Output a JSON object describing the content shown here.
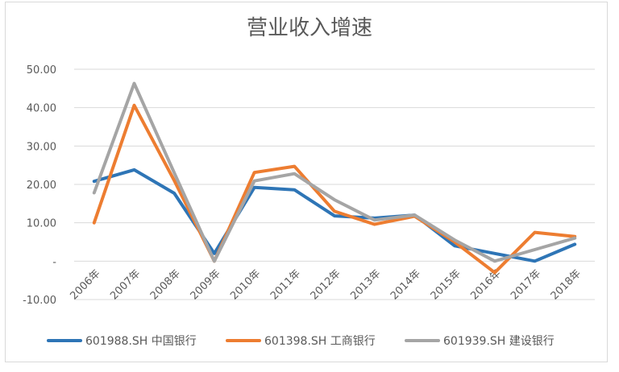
{
  "chart_data": {
    "type": "line",
    "title": "营业收入增速",
    "categories": [
      "2006年",
      "2007年",
      "2008年",
      "2009年",
      "2010年",
      "2011年",
      "2012年",
      "2013年",
      "2014年",
      "2015年",
      "2016年",
      "2017年",
      "2018年"
    ],
    "series": [
      {
        "name": "601988.SH 中国银行",
        "color": "#2e75b6",
        "values": [
          20.8,
          23.8,
          17.7,
          2.0,
          19.2,
          18.6,
          11.8,
          11.2,
          12.0,
          4.0,
          2.0,
          0.0,
          4.4
        ]
      },
      {
        "name": "601398.SH 工商银行",
        "color": "#ed7d31",
        "values": [
          10.0,
          40.6,
          21.0,
          0.0,
          23.1,
          24.7,
          13.0,
          9.6,
          11.7,
          5.0,
          -3.0,
          7.5,
          6.4
        ]
      },
      {
        "name": "601939.SH 建设银行",
        "color": "#a5a5a5",
        "values": [
          17.8,
          46.3,
          23.0,
          0.0,
          20.9,
          22.8,
          16.0,
          10.7,
          12.0,
          5.5,
          0.0,
          3.0,
          6.0
        ]
      }
    ],
    "yticks": [
      "50.00",
      "40.00",
      "30.00",
      "20.00",
      "10.00",
      "-",
      "-10.00"
    ],
    "ylim": [
      -10,
      50
    ],
    "grid": true,
    "legend": "bottom"
  }
}
